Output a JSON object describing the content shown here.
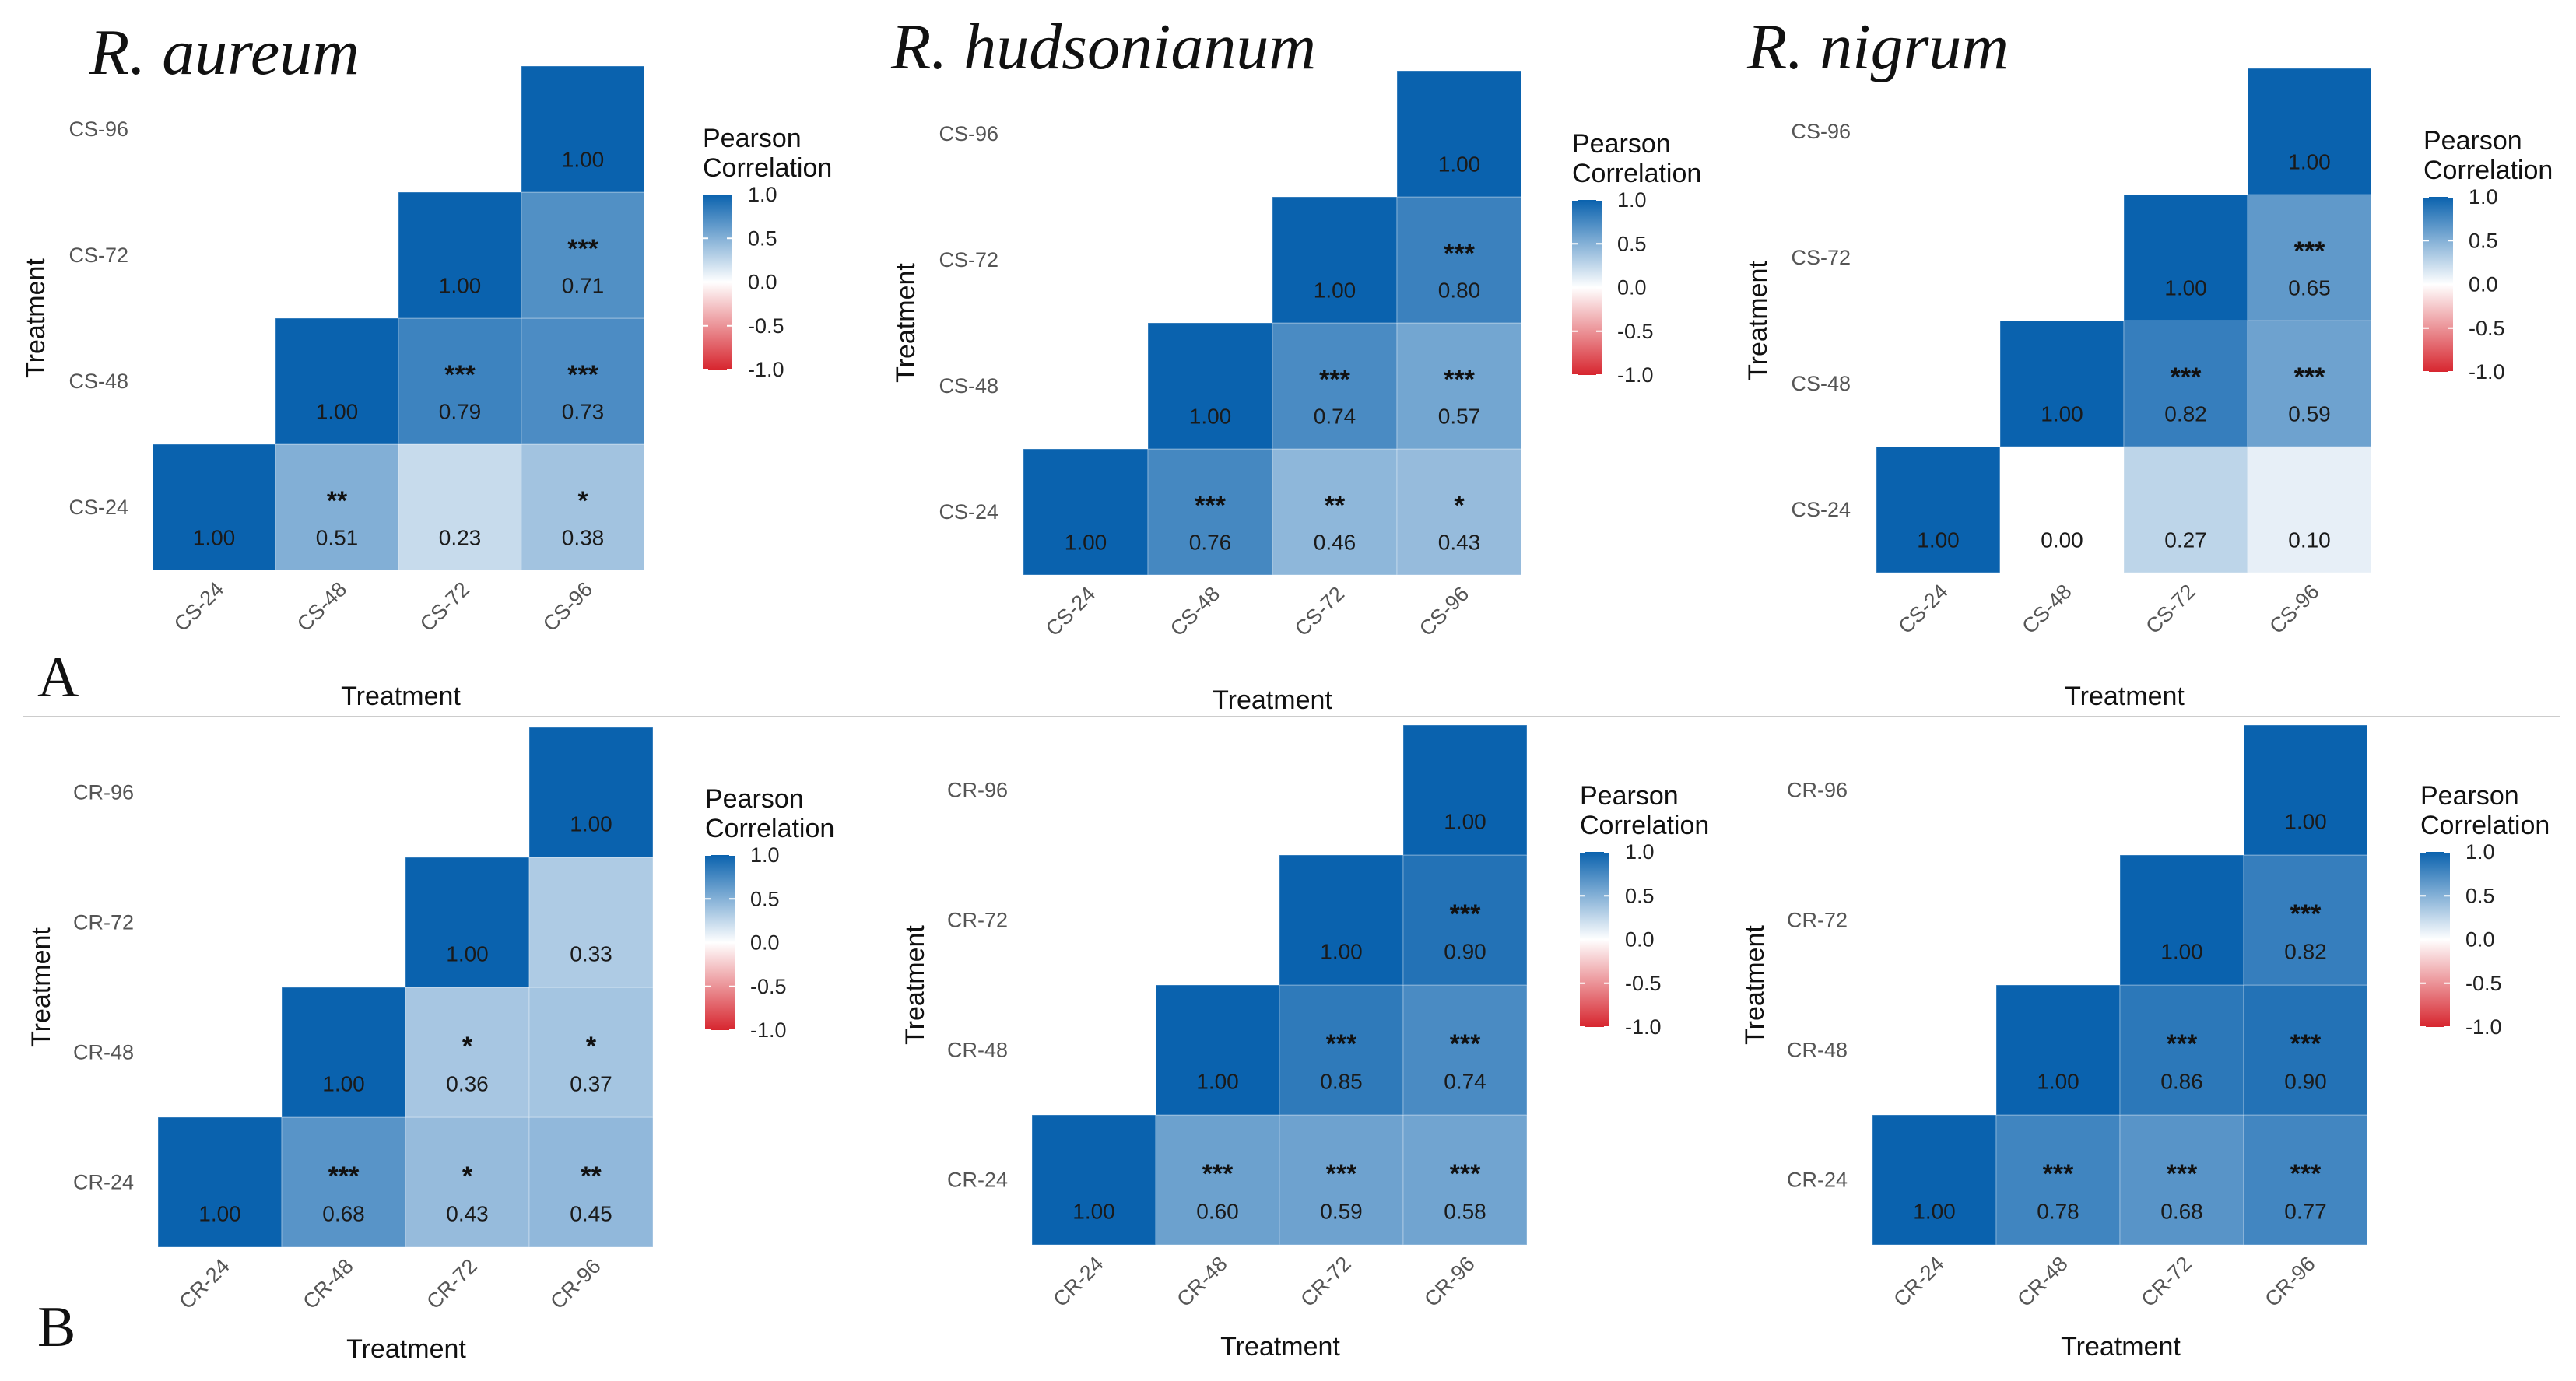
{
  "legend": {
    "title_line1": "Pearson",
    "title_line2": "Correlation",
    "ticks": [
      "1.0",
      "0.5",
      "0.0",
      "-0.5",
      "-1.0"
    ],
    "tick_values": [
      1.0,
      0.5,
      0.0,
      -0.5,
      -1.0
    ],
    "color_positive": "#0a62ae",
    "color_neutral": "#ffffff",
    "color_negative": "#d7262f"
  },
  "colors": {
    "divider": "#cccccc",
    "text": "#111111",
    "tick_text": "#555555"
  },
  "panel_labels": [
    "A",
    "B"
  ],
  "chart_data": [
    {
      "type": "heatmap",
      "title": "R. aureum",
      "row": "A",
      "xlabel": "Treatment",
      "ylabel": "Treatment",
      "categories": [
        "CS-24",
        "CS-48",
        "CS-72",
        "CS-96"
      ],
      "cells": [
        {
          "x": "CS-24",
          "y": "CS-24",
          "value": 1.0,
          "label": "1.00",
          "sig": ""
        },
        {
          "x": "CS-48",
          "y": "CS-24",
          "value": 0.51,
          "label": "0.51",
          "sig": "**"
        },
        {
          "x": "CS-72",
          "y": "CS-24",
          "value": 0.23,
          "label": "0.23",
          "sig": ""
        },
        {
          "x": "CS-96",
          "y": "CS-24",
          "value": 0.38,
          "label": "0.38",
          "sig": "*"
        },
        {
          "x": "CS-48",
          "y": "CS-48",
          "value": 1.0,
          "label": "1.00",
          "sig": ""
        },
        {
          "x": "CS-72",
          "y": "CS-48",
          "value": 0.79,
          "label": "0.79",
          "sig": "***"
        },
        {
          "x": "CS-96",
          "y": "CS-48",
          "value": 0.73,
          "label": "0.73",
          "sig": "***"
        },
        {
          "x": "CS-72",
          "y": "CS-72",
          "value": 1.0,
          "label": "1.00",
          "sig": ""
        },
        {
          "x": "CS-96",
          "y": "CS-72",
          "value": 0.71,
          "label": "0.71",
          "sig": "***"
        },
        {
          "x": "CS-96",
          "y": "CS-96",
          "value": 1.0,
          "label": "1.00",
          "sig": ""
        }
      ]
    },
    {
      "type": "heatmap",
      "title": "R. hudsonianum",
      "row": "A",
      "xlabel": "Treatment",
      "ylabel": "Treatment",
      "categories": [
        "CS-24",
        "CS-48",
        "CS-72",
        "CS-96"
      ],
      "cells": [
        {
          "x": "CS-24",
          "y": "CS-24",
          "value": 1.0,
          "label": "1.00",
          "sig": ""
        },
        {
          "x": "CS-48",
          "y": "CS-24",
          "value": 0.76,
          "label": "0.76",
          "sig": "***"
        },
        {
          "x": "CS-72",
          "y": "CS-24",
          "value": 0.46,
          "label": "0.46",
          "sig": "**"
        },
        {
          "x": "CS-96",
          "y": "CS-24",
          "value": 0.43,
          "label": "0.43",
          "sig": "*"
        },
        {
          "x": "CS-48",
          "y": "CS-48",
          "value": 1.0,
          "label": "1.00",
          "sig": ""
        },
        {
          "x": "CS-72",
          "y": "CS-48",
          "value": 0.74,
          "label": "0.74",
          "sig": "***"
        },
        {
          "x": "CS-96",
          "y": "CS-48",
          "value": 0.57,
          "label": "0.57",
          "sig": "***"
        },
        {
          "x": "CS-72",
          "y": "CS-72",
          "value": 1.0,
          "label": "1.00",
          "sig": ""
        },
        {
          "x": "CS-96",
          "y": "CS-72",
          "value": 0.8,
          "label": "0.80",
          "sig": "***"
        },
        {
          "x": "CS-96",
          "y": "CS-96",
          "value": 1.0,
          "label": "1.00",
          "sig": ""
        }
      ]
    },
    {
      "type": "heatmap",
      "title": "R. nigrum",
      "row": "A",
      "xlabel": "Treatment",
      "ylabel": "Treatment",
      "categories": [
        "CS-24",
        "CS-48",
        "CS-72",
        "CS-96"
      ],
      "cells": [
        {
          "x": "CS-24",
          "y": "CS-24",
          "value": 1.0,
          "label": "1.00",
          "sig": ""
        },
        {
          "x": "CS-48",
          "y": "CS-24",
          "value": 0.0,
          "label": "0.00",
          "sig": ""
        },
        {
          "x": "CS-72",
          "y": "CS-24",
          "value": 0.27,
          "label": "0.27",
          "sig": ""
        },
        {
          "x": "CS-96",
          "y": "CS-24",
          "value": 0.1,
          "label": "0.10",
          "sig": ""
        },
        {
          "x": "CS-48",
          "y": "CS-48",
          "value": 1.0,
          "label": "1.00",
          "sig": ""
        },
        {
          "x": "CS-72",
          "y": "CS-48",
          "value": 0.82,
          "label": "0.82",
          "sig": "***"
        },
        {
          "x": "CS-96",
          "y": "CS-48",
          "value": 0.59,
          "label": "0.59",
          "sig": "***"
        },
        {
          "x": "CS-72",
          "y": "CS-72",
          "value": 1.0,
          "label": "1.00",
          "sig": ""
        },
        {
          "x": "CS-96",
          "y": "CS-72",
          "value": 0.65,
          "label": "0.65",
          "sig": "***"
        },
        {
          "x": "CS-96",
          "y": "CS-96",
          "value": 1.0,
          "label": "1.00",
          "sig": ""
        }
      ]
    },
    {
      "type": "heatmap",
      "title": "",
      "row": "B",
      "xlabel": "Treatment",
      "ylabel": "Treatment",
      "categories": [
        "CR-24",
        "CR-48",
        "CR-72",
        "CR-96"
      ],
      "cells": [
        {
          "x": "CR-24",
          "y": "CR-24",
          "value": 1.0,
          "label": "1.00",
          "sig": ""
        },
        {
          "x": "CR-48",
          "y": "CR-24",
          "value": 0.68,
          "label": "0.68",
          "sig": "***"
        },
        {
          "x": "CR-72",
          "y": "CR-24",
          "value": 0.43,
          "label": "0.43",
          "sig": "*"
        },
        {
          "x": "CR-96",
          "y": "CR-24",
          "value": 0.45,
          "label": "0.45",
          "sig": "**"
        },
        {
          "x": "CR-48",
          "y": "CR-48",
          "value": 1.0,
          "label": "1.00",
          "sig": ""
        },
        {
          "x": "CR-72",
          "y": "CR-48",
          "value": 0.36,
          "label": "0.36",
          "sig": "*"
        },
        {
          "x": "CR-96",
          "y": "CR-48",
          "value": 0.37,
          "label": "0.37",
          "sig": "*"
        },
        {
          "x": "CR-72",
          "y": "CR-72",
          "value": 1.0,
          "label": "1.00",
          "sig": ""
        },
        {
          "x": "CR-96",
          "y": "CR-72",
          "value": 0.33,
          "label": "0.33",
          "sig": ""
        },
        {
          "x": "CR-96",
          "y": "CR-96",
          "value": 1.0,
          "label": "1.00",
          "sig": ""
        }
      ]
    },
    {
      "type": "heatmap",
      "title": "",
      "row": "B",
      "xlabel": "Treatment",
      "ylabel": "Treatment",
      "categories": [
        "CR-24",
        "CR-48",
        "CR-72",
        "CR-96"
      ],
      "cells": [
        {
          "x": "CR-24",
          "y": "CR-24",
          "value": 1.0,
          "label": "1.00",
          "sig": ""
        },
        {
          "x": "CR-48",
          "y": "CR-24",
          "value": 0.6,
          "label": "0.60",
          "sig": "***"
        },
        {
          "x": "CR-72",
          "y": "CR-24",
          "value": 0.59,
          "label": "0.59",
          "sig": "***"
        },
        {
          "x": "CR-96",
          "y": "CR-24",
          "value": 0.58,
          "label": "0.58",
          "sig": "***"
        },
        {
          "x": "CR-48",
          "y": "CR-48",
          "value": 1.0,
          "label": "1.00",
          "sig": ""
        },
        {
          "x": "CR-72",
          "y": "CR-48",
          "value": 0.85,
          "label": "0.85",
          "sig": "***"
        },
        {
          "x": "CR-96",
          "y": "CR-48",
          "value": 0.74,
          "label": "0.74",
          "sig": "***"
        },
        {
          "x": "CR-72",
          "y": "CR-72",
          "value": 1.0,
          "label": "1.00",
          "sig": ""
        },
        {
          "x": "CR-96",
          "y": "CR-72",
          "value": 0.9,
          "label": "0.90",
          "sig": "***"
        },
        {
          "x": "CR-96",
          "y": "CR-96",
          "value": 1.0,
          "label": "1.00",
          "sig": ""
        }
      ]
    },
    {
      "type": "heatmap",
      "title": "",
      "row": "B",
      "xlabel": "Treatment",
      "ylabel": "Treatment",
      "categories": [
        "CR-24",
        "CR-48",
        "CR-72",
        "CR-96"
      ],
      "cells": [
        {
          "x": "CR-24",
          "y": "CR-24",
          "value": 1.0,
          "label": "1.00",
          "sig": ""
        },
        {
          "x": "CR-48",
          "y": "CR-24",
          "value": 0.78,
          "label": "0.78",
          "sig": "***"
        },
        {
          "x": "CR-72",
          "y": "CR-24",
          "value": 0.68,
          "label": "0.68",
          "sig": "***"
        },
        {
          "x": "CR-96",
          "y": "CR-24",
          "value": 0.77,
          "label": "0.77",
          "sig": "***"
        },
        {
          "x": "CR-48",
          "y": "CR-48",
          "value": 1.0,
          "label": "1.00",
          "sig": ""
        },
        {
          "x": "CR-72",
          "y": "CR-48",
          "value": 0.86,
          "label": "0.86",
          "sig": "***"
        },
        {
          "x": "CR-96",
          "y": "CR-48",
          "value": 0.9,
          "label": "0.90",
          "sig": "***"
        },
        {
          "x": "CR-72",
          "y": "CR-72",
          "value": 1.0,
          "label": "1.00",
          "sig": ""
        },
        {
          "x": "CR-96",
          "y": "CR-72",
          "value": 0.82,
          "label": "0.82",
          "sig": "***"
        },
        {
          "x": "CR-96",
          "y": "CR-96",
          "value": 1.0,
          "label": "1.00",
          "sig": ""
        }
      ]
    }
  ]
}
